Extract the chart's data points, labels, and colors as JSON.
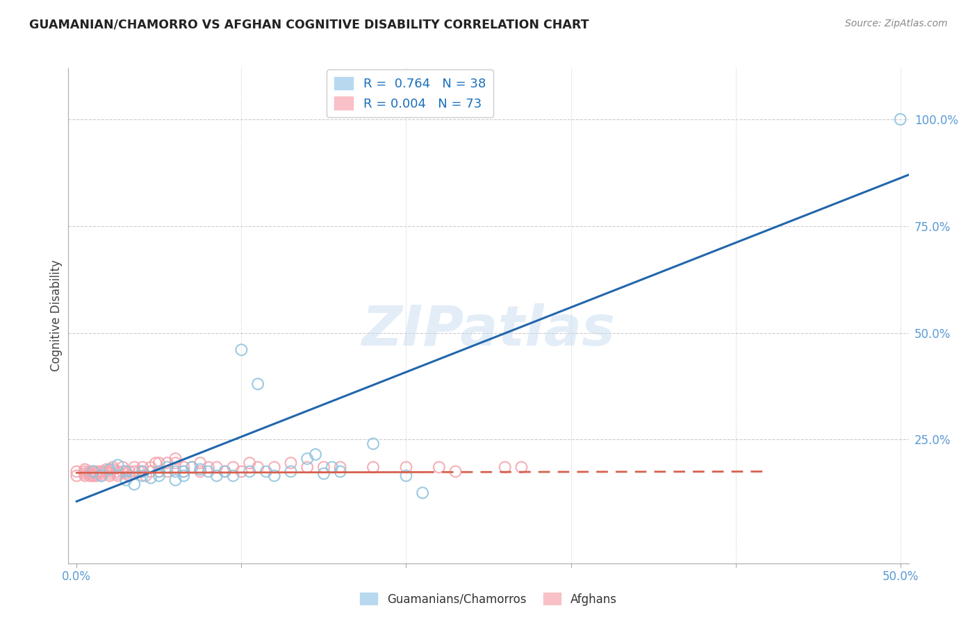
{
  "title": "GUAMANIAN/CHAMORRO VS AFGHAN COGNITIVE DISABILITY CORRELATION CHART",
  "source": "Source: ZipAtlas.com",
  "ylabel": "Cognitive Disability",
  "ytick_labels": [
    "100.0%",
    "75.0%",
    "50.0%",
    "25.0%"
  ],
  "ytick_values": [
    1.0,
    0.75,
    0.5,
    0.25
  ],
  "xlim": [
    -0.005,
    0.505
  ],
  "ylim": [
    -0.04,
    1.12
  ],
  "legend1_label": "R =  0.764   N = 38",
  "legend2_label": "R = 0.004   N = 73",
  "blue_color": "#92c5de",
  "pink_color": "#f4a6b0",
  "trendline_blue": "#2166ac",
  "trendline_pink": "#d6604d",
  "watermark": "ZIPatlas",
  "guamanian_scatter_x": [
    0.01,
    0.015,
    0.02,
    0.025,
    0.03,
    0.03,
    0.035,
    0.04,
    0.04,
    0.045,
    0.05,
    0.05,
    0.055,
    0.06,
    0.06,
    0.065,
    0.065,
    0.07,
    0.075,
    0.08,
    0.085,
    0.09,
    0.095,
    0.1,
    0.105,
    0.11,
    0.115,
    0.12,
    0.13,
    0.14,
    0.145,
    0.15,
    0.155,
    0.16,
    0.18,
    0.2,
    0.21,
    0.5
  ],
  "guamanian_scatter_y": [
    0.175,
    0.165,
    0.18,
    0.19,
    0.175,
    0.155,
    0.145,
    0.175,
    0.165,
    0.16,
    0.175,
    0.165,
    0.185,
    0.175,
    0.155,
    0.175,
    0.165,
    0.185,
    0.18,
    0.175,
    0.165,
    0.175,
    0.165,
    0.46,
    0.175,
    0.38,
    0.175,
    0.165,
    0.175,
    0.205,
    0.215,
    0.17,
    0.185,
    0.175,
    0.24,
    0.165,
    0.125,
    1.0
  ],
  "afghan_scatter_x": [
    0.0,
    0.0,
    0.005,
    0.005,
    0.005,
    0.005,
    0.008,
    0.008,
    0.008,
    0.01,
    0.01,
    0.01,
    0.01,
    0.012,
    0.012,
    0.012,
    0.015,
    0.015,
    0.015,
    0.018,
    0.018,
    0.02,
    0.02,
    0.02,
    0.022,
    0.022,
    0.025,
    0.025,
    0.025,
    0.028,
    0.028,
    0.03,
    0.03,
    0.032,
    0.032,
    0.035,
    0.035,
    0.038,
    0.04,
    0.04,
    0.042,
    0.045,
    0.045,
    0.048,
    0.05,
    0.05,
    0.055,
    0.055,
    0.06,
    0.06,
    0.065,
    0.065,
    0.07,
    0.075,
    0.075,
    0.08,
    0.085,
    0.09,
    0.095,
    0.1,
    0.105,
    0.11,
    0.12,
    0.13,
    0.14,
    0.15,
    0.16,
    0.18,
    0.2,
    0.22,
    0.23,
    0.26,
    0.27
  ],
  "afghan_scatter_y": [
    0.165,
    0.175,
    0.17,
    0.165,
    0.175,
    0.18,
    0.165,
    0.175,
    0.17,
    0.165,
    0.175,
    0.165,
    0.175,
    0.17,
    0.175,
    0.165,
    0.175,
    0.17,
    0.165,
    0.175,
    0.18,
    0.165,
    0.17,
    0.175,
    0.18,
    0.185,
    0.175,
    0.17,
    0.165,
    0.175,
    0.185,
    0.175,
    0.17,
    0.175,
    0.165,
    0.175,
    0.185,
    0.175,
    0.185,
    0.175,
    0.165,
    0.185,
    0.175,
    0.195,
    0.195,
    0.175,
    0.195,
    0.175,
    0.205,
    0.195,
    0.185,
    0.175,
    0.185,
    0.195,
    0.175,
    0.185,
    0.185,
    0.175,
    0.185,
    0.175,
    0.195,
    0.185,
    0.185,
    0.195,
    0.185,
    0.185,
    0.185,
    0.185,
    0.185,
    0.185,
    0.175,
    0.185,
    0.185
  ],
  "blue_trend_x": [
    0.0,
    0.505
  ],
  "blue_trend_y": [
    0.105,
    0.87
  ],
  "pink_trend_x": [
    0.0,
    0.42
  ],
  "pink_trend_y": [
    0.172,
    0.175
  ],
  "xtick_positions": [
    0.0,
    0.1,
    0.2,
    0.3,
    0.4,
    0.5
  ],
  "xtick_labels": [
    "0.0%",
    "",
    "",
    "",
    "",
    "50.0%"
  ]
}
